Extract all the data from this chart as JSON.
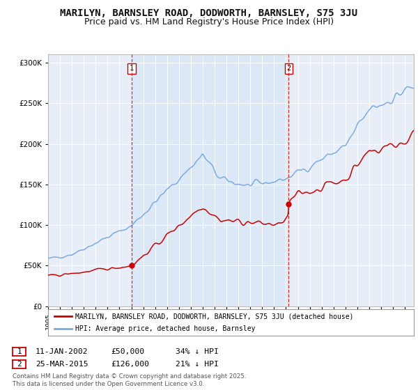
{
  "title": "MARILYN, BARNSLEY ROAD, DODWORTH, BARNSLEY, S75 3JU",
  "subtitle": "Price paid vs. HM Land Registry's House Price Index (HPI)",
  "title_fontsize": 10,
  "subtitle_fontsize": 9,
  "bg_color": "#e8eef8",
  "highlight_color": "#dce8f5",
  "red_color": "#cc0000",
  "blue_color": "#7aabe0",
  "legend_label_red": "MARILYN, BARNSLEY ROAD, DODWORTH, BARNSLEY, S75 3JU (detached house)",
  "legend_label_blue": "HPI: Average price, detached house, Barnsley",
  "sale1_date_num": 2002.04,
  "sale2_date_num": 2015.23,
  "sale1_price": 50000,
  "sale2_price": 126000,
  "sale1_text": "11-JAN-2002",
  "sale2_text": "25-MAR-2015",
  "sale1_pct": "34% ↓ HPI",
  "sale2_pct": "21% ↓ HPI",
  "copyright_text": "Contains HM Land Registry data © Crown copyright and database right 2025.\nThis data is licensed under the Open Government Licence v3.0.",
  "ylim": [
    0,
    310000
  ],
  "xlim_start": 1995.0,
  "xlim_end": 2025.75
}
